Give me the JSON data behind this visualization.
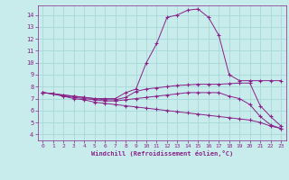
{
  "xlabel": "Windchill (Refroidissement éolien,°C)",
  "background_color": "#c8ecec",
  "grid_color": "#a8d8d8",
  "line_color": "#882288",
  "xlim": [
    -0.5,
    23.5
  ],
  "ylim": [
    3.5,
    14.8
  ],
  "yticks": [
    4,
    5,
    6,
    7,
    8,
    9,
    10,
    11,
    12,
    13,
    14
  ],
  "xticks": [
    0,
    1,
    2,
    3,
    4,
    5,
    6,
    7,
    8,
    9,
    10,
    11,
    12,
    13,
    14,
    15,
    16,
    17,
    18,
    19,
    20,
    21,
    22,
    23
  ],
  "line1": [
    7.5,
    7.4,
    7.3,
    7.2,
    7.1,
    7.0,
    7.0,
    7.0,
    7.5,
    7.8,
    10.0,
    11.6,
    13.8,
    14.0,
    14.4,
    14.5,
    13.8,
    12.3,
    9.0,
    8.5,
    8.5,
    8.5,
    8.5,
    8.5
  ],
  "line2": [
    7.5,
    7.4,
    7.3,
    7.2,
    7.1,
    7.0,
    6.9,
    6.9,
    7.1,
    7.6,
    7.8,
    7.9,
    8.0,
    8.1,
    8.15,
    8.2,
    8.2,
    8.2,
    8.25,
    8.3,
    8.3,
    6.4,
    5.5,
    4.7
  ],
  "line3": [
    7.5,
    7.4,
    7.2,
    7.1,
    7.0,
    6.9,
    6.8,
    6.8,
    6.9,
    7.0,
    7.1,
    7.2,
    7.3,
    7.4,
    7.5,
    7.5,
    7.5,
    7.5,
    7.2,
    7.0,
    6.5,
    5.5,
    4.8,
    4.5
  ],
  "line4": [
    7.5,
    7.4,
    7.2,
    7.0,
    6.9,
    6.7,
    6.6,
    6.5,
    6.4,
    6.3,
    6.2,
    6.1,
    6.0,
    5.9,
    5.8,
    5.7,
    5.6,
    5.5,
    5.4,
    5.3,
    5.2,
    5.0,
    4.7,
    4.5
  ]
}
